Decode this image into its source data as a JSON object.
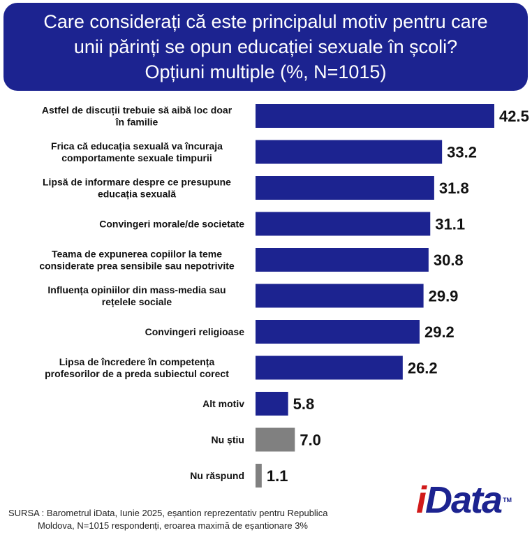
{
  "title": {
    "line1": "Care considerați că este principalul motiv pentru care",
    "line2": "unii părinți se opun educației sexuale în școli?",
    "line3": "Opțiuni multiple (%, N=1015)"
  },
  "chart_data": {
    "type": "bar",
    "orientation": "horizontal",
    "categories": [
      [
        "Astfel de discuții trebuie să aibă loc doar",
        "în familie"
      ],
      [
        "Frica că educația sexuală va încuraja",
        "comportamente sexuale timpurii"
      ],
      [
        "Lipsă de informare despre ce presupune",
        "educația sexuală"
      ],
      [
        "Convingeri morale/de societate"
      ],
      [
        "Teama de expunerea copiilor la teme",
        "considerate prea sensibile sau nepotrivite"
      ],
      [
        "Influența opiniilor din mass-media sau",
        "rețelele sociale"
      ],
      [
        "Convingeri religioase"
      ],
      [
        "Lipsa de încredere în competența",
        "profesorilor de a preda subiectul corect"
      ],
      [
        "Alt motiv"
      ],
      [
        "Nu știu"
      ],
      [
        "Nu răspund"
      ]
    ],
    "values": [
      42.5,
      33.2,
      31.8,
      31.1,
      30.8,
      29.9,
      29.2,
      26.2,
      5.8,
      7.0,
      1.1
    ],
    "value_labels": [
      "42.5",
      "33.2",
      "31.8",
      "31.1",
      "30.8",
      "29.9",
      "29.2",
      "26.2",
      "5.8",
      "7.0",
      "1.1"
    ],
    "bar_colors": [
      "#1c2390",
      "#1c2390",
      "#1c2390",
      "#1c2390",
      "#1c2390",
      "#1c2390",
      "#1c2390",
      "#1c2390",
      "#1c2390",
      "#808080",
      "#808080"
    ],
    "grid": false,
    "legend": "none"
  },
  "source": {
    "line1": "SURSA : Barometrul iData, Iunie 2025, eșantion reprezentativ pentru Republica",
    "line2": "Moldova, N=1015 respondenți, eroarea maximă de eșantionare 3%"
  },
  "logo": {
    "brand": "iData",
    "brand_first": "i",
    "brand_rest": "Data",
    "trademark": "TM"
  },
  "colors": {
    "primary": "#1c2390",
    "secondary": "#808080",
    "logo_accent": "#d11a1a"
  }
}
